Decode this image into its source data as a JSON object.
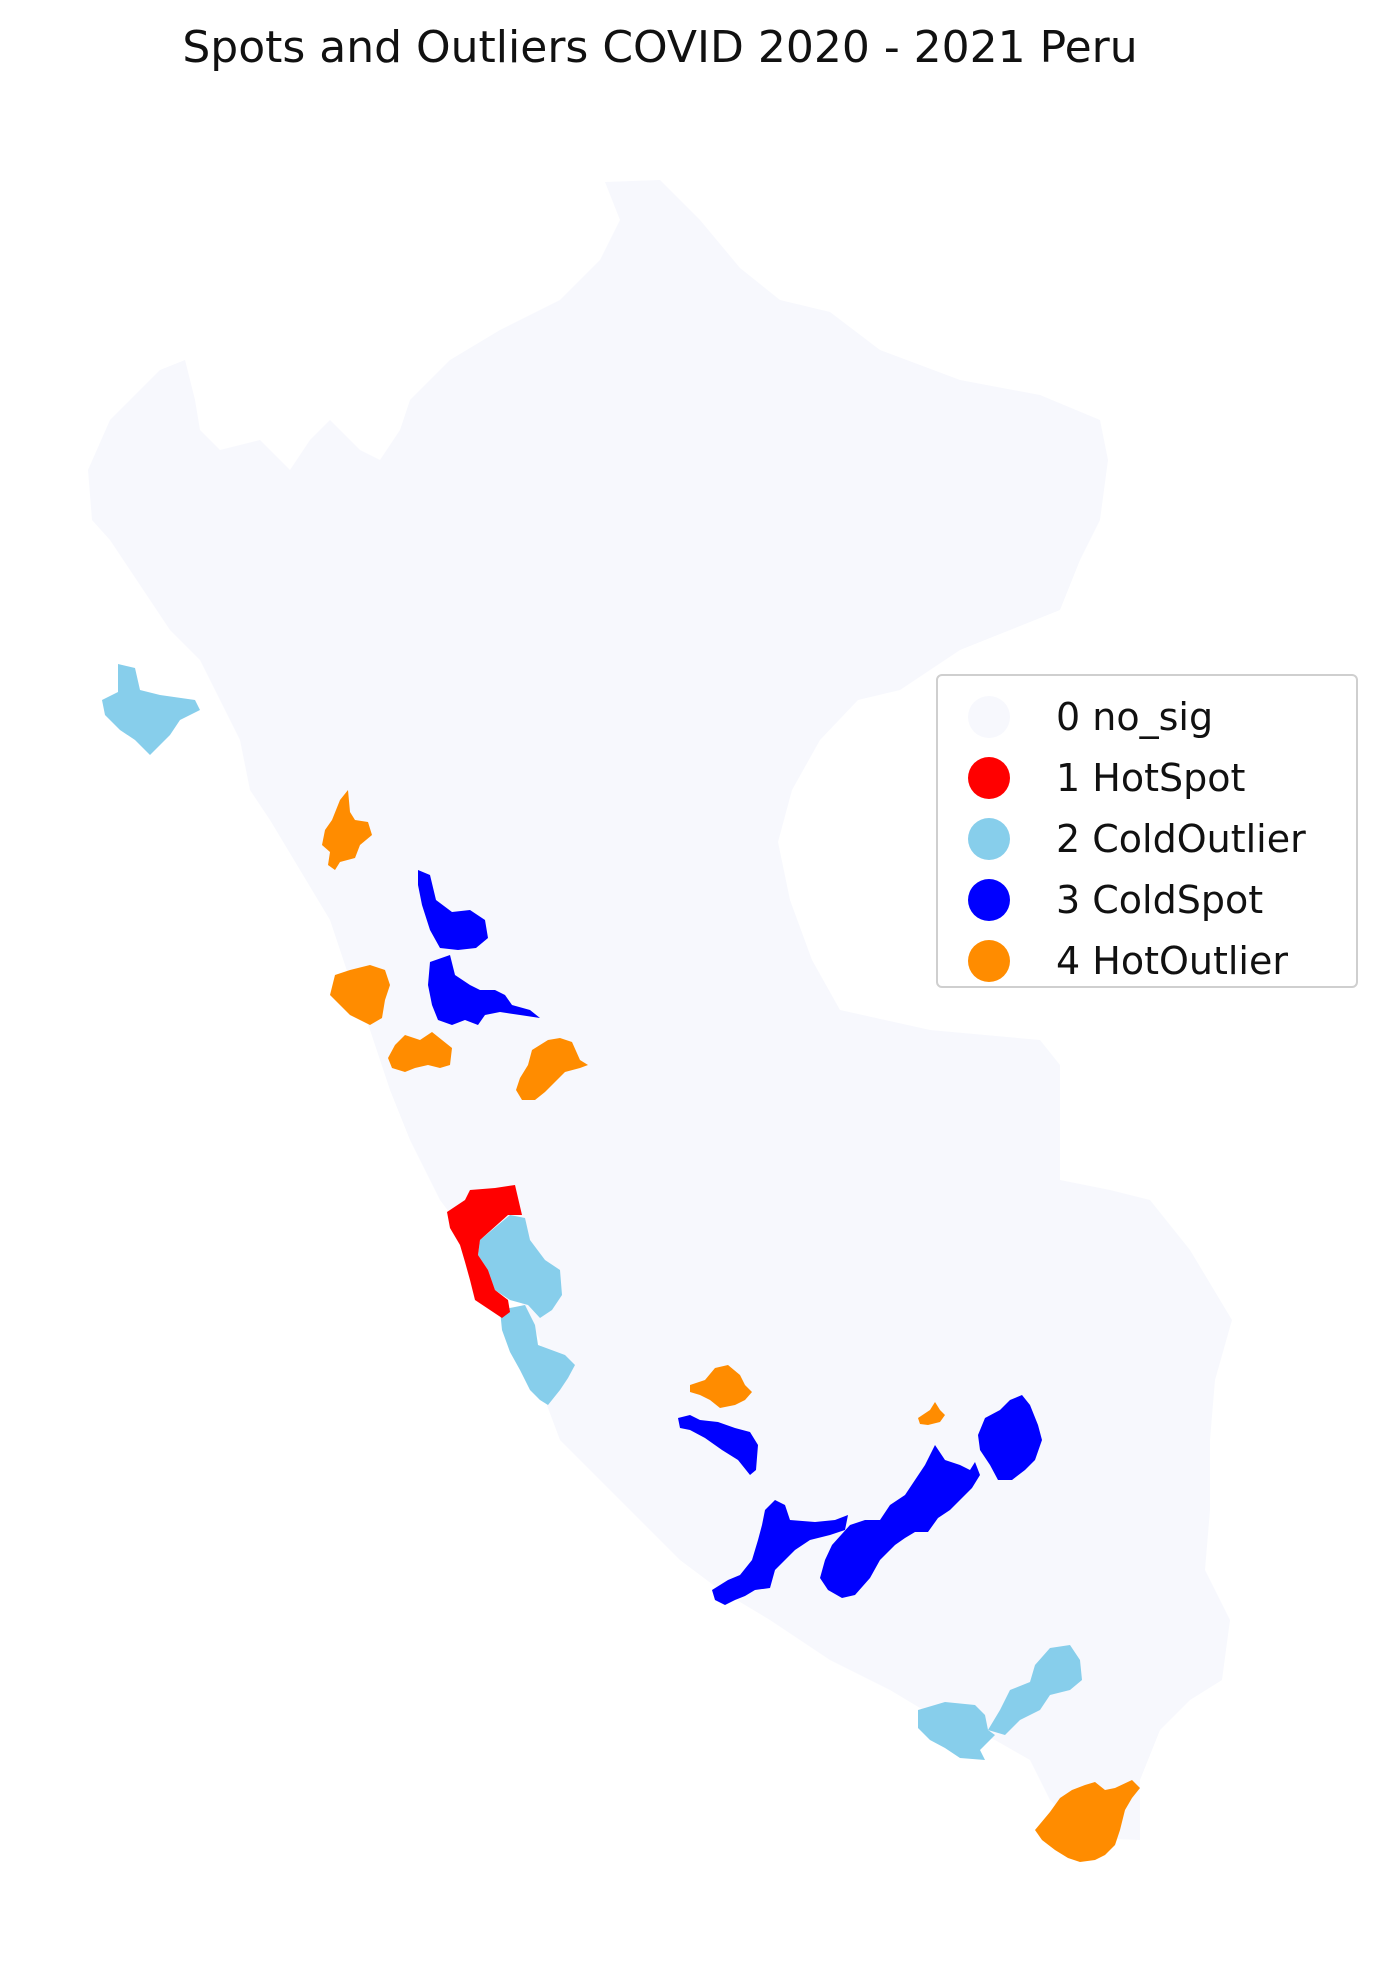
{
  "title": "Spots and Outliers COVID 2020 - 2021 Peru",
  "colors": {
    "no_sig": "#f7f8fd",
    "hotspot": "#ff0000",
    "coldoutlier": "#87ceeb",
    "coldspot": "#0000ff",
    "hotoutlier": "#ff8c00"
  },
  "legend": {
    "items": [
      {
        "label": "0 no_sig",
        "color": "#f7f8fd"
      },
      {
        "label": "1 HotSpot",
        "color": "#ff0000"
      },
      {
        "label": "2 ColdOutlier",
        "color": "#87ceeb"
      },
      {
        "label": "3 ColdSpot",
        "color": "#0000ff"
      },
      {
        "label": "4 HotOutlier",
        "color": "#ff8c00"
      }
    ]
  }
}
